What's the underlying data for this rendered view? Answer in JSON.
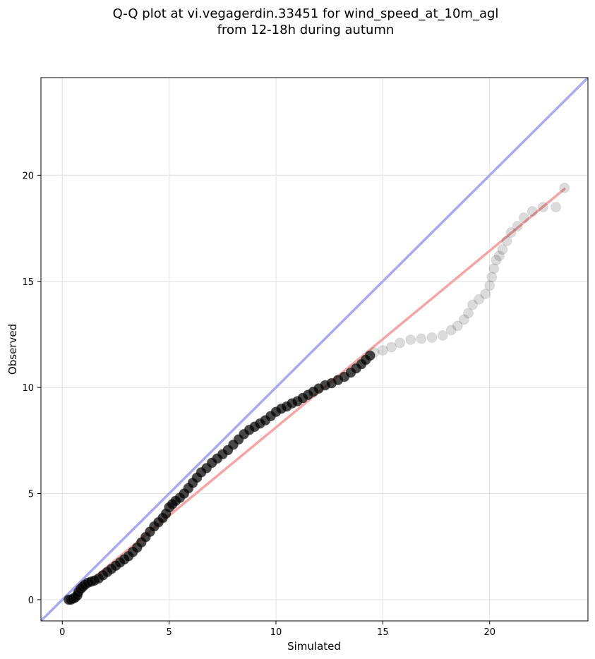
{
  "title_lines": [
    "Q-Q plot at vi.vegagerdin.33451 for wind_speed_at_10m_agl",
    "from 12-18h during autumn"
  ],
  "chart_data": {
    "type": "scatter",
    "xlabel": "Simulated",
    "ylabel": "Observed",
    "xlim": [
      -1,
      24.6
    ],
    "ylim": [
      -1,
      24.6
    ],
    "xticks": [
      0,
      5,
      10,
      15,
      20
    ],
    "yticks": [
      0,
      5,
      10,
      15,
      20
    ],
    "grid": true,
    "identity_line": {
      "color": "#aaaaf0",
      "from": [
        -1,
        -1
      ],
      "to": [
        24.6,
        24.6
      ]
    },
    "fit_line": {
      "color": "#f4a6a6",
      "from": [
        0.3,
        0.05
      ],
      "to": [
        23.5,
        19.35
      ]
    },
    "point_color": "#000000",
    "series": [
      {
        "values": [
          [
            0.3,
            0.0
          ],
          [
            0.4,
            0.0
          ],
          [
            0.5,
            0.05
          ],
          [
            0.6,
            0.1
          ],
          [
            0.7,
            0.2
          ],
          [
            0.75,
            0.35
          ],
          [
            0.85,
            0.5
          ],
          [
            0.95,
            0.6
          ],
          [
            1.05,
            0.7
          ],
          [
            1.2,
            0.8
          ],
          [
            1.35,
            0.85
          ],
          [
            1.5,
            0.9
          ],
          [
            1.7,
            1.0
          ],
          [
            1.9,
            1.15
          ],
          [
            2.1,
            1.3
          ],
          [
            2.3,
            1.45
          ],
          [
            2.5,
            1.6
          ],
          [
            2.7,
            1.75
          ],
          [
            2.9,
            1.9
          ],
          [
            3.1,
            2.05
          ],
          [
            3.3,
            2.25
          ],
          [
            3.5,
            2.45
          ],
          [
            3.7,
            2.7
          ],
          [
            3.9,
            2.95
          ],
          [
            4.1,
            3.2
          ],
          [
            4.3,
            3.45
          ],
          [
            4.5,
            3.65
          ],
          [
            4.7,
            3.85
          ],
          [
            4.85,
            4.05
          ],
          [
            5.0,
            4.35
          ],
          [
            5.15,
            4.5
          ],
          [
            5.3,
            4.65
          ],
          [
            5.5,
            4.8
          ],
          [
            5.7,
            5.0
          ],
          [
            5.9,
            5.25
          ],
          [
            6.1,
            5.5
          ],
          [
            6.3,
            5.75
          ],
          [
            6.5,
            6.0
          ],
          [
            6.75,
            6.2
          ],
          [
            7.0,
            6.45
          ],
          [
            7.25,
            6.65
          ],
          [
            7.5,
            6.85
          ],
          [
            7.75,
            7.05
          ],
          [
            8.0,
            7.3
          ],
          [
            8.25,
            7.55
          ],
          [
            8.5,
            7.8
          ],
          [
            8.75,
            8.0
          ],
          [
            9.0,
            8.15
          ],
          [
            9.25,
            8.3
          ],
          [
            9.5,
            8.45
          ],
          [
            9.75,
            8.65
          ],
          [
            10.0,
            8.85
          ],
          [
            10.25,
            9.0
          ],
          [
            10.5,
            9.1
          ],
          [
            10.75,
            9.25
          ],
          [
            11.0,
            9.35
          ],
          [
            11.25,
            9.5
          ],
          [
            11.5,
            9.65
          ],
          [
            11.75,
            9.8
          ],
          [
            12.0,
            9.95
          ],
          [
            12.3,
            10.1
          ],
          [
            12.6,
            10.2
          ],
          [
            12.9,
            10.35
          ],
          [
            13.2,
            10.5
          ],
          [
            13.5,
            10.7
          ],
          [
            13.75,
            10.9
          ],
          [
            14.0,
            11.1
          ],
          [
            14.2,
            11.3
          ],
          [
            14.4,
            11.5
          ],
          [
            14.6,
            11.65
          ],
          [
            15.0,
            11.75
          ],
          [
            15.4,
            11.9
          ],
          [
            15.8,
            12.1
          ],
          [
            16.3,
            12.25
          ],
          [
            16.8,
            12.3
          ],
          [
            17.3,
            12.35
          ],
          [
            17.8,
            12.45
          ],
          [
            18.2,
            12.7
          ],
          [
            18.5,
            12.9
          ],
          [
            18.8,
            13.2
          ],
          [
            19.0,
            13.5
          ],
          [
            19.2,
            13.9
          ],
          [
            19.5,
            14.15
          ],
          [
            19.8,
            14.4
          ],
          [
            20.0,
            14.8
          ],
          [
            20.1,
            15.2
          ],
          [
            20.2,
            15.6
          ],
          [
            20.3,
            16.0
          ],
          [
            20.45,
            16.2
          ],
          [
            20.6,
            16.5
          ],
          [
            20.8,
            16.9
          ],
          [
            21.0,
            17.3
          ],
          [
            21.3,
            17.6
          ],
          [
            21.6,
            18.0
          ],
          [
            22.0,
            18.3
          ],
          [
            22.5,
            18.5
          ],
          [
            23.1,
            18.5
          ],
          [
            23.5,
            19.4
          ]
        ]
      }
    ]
  }
}
